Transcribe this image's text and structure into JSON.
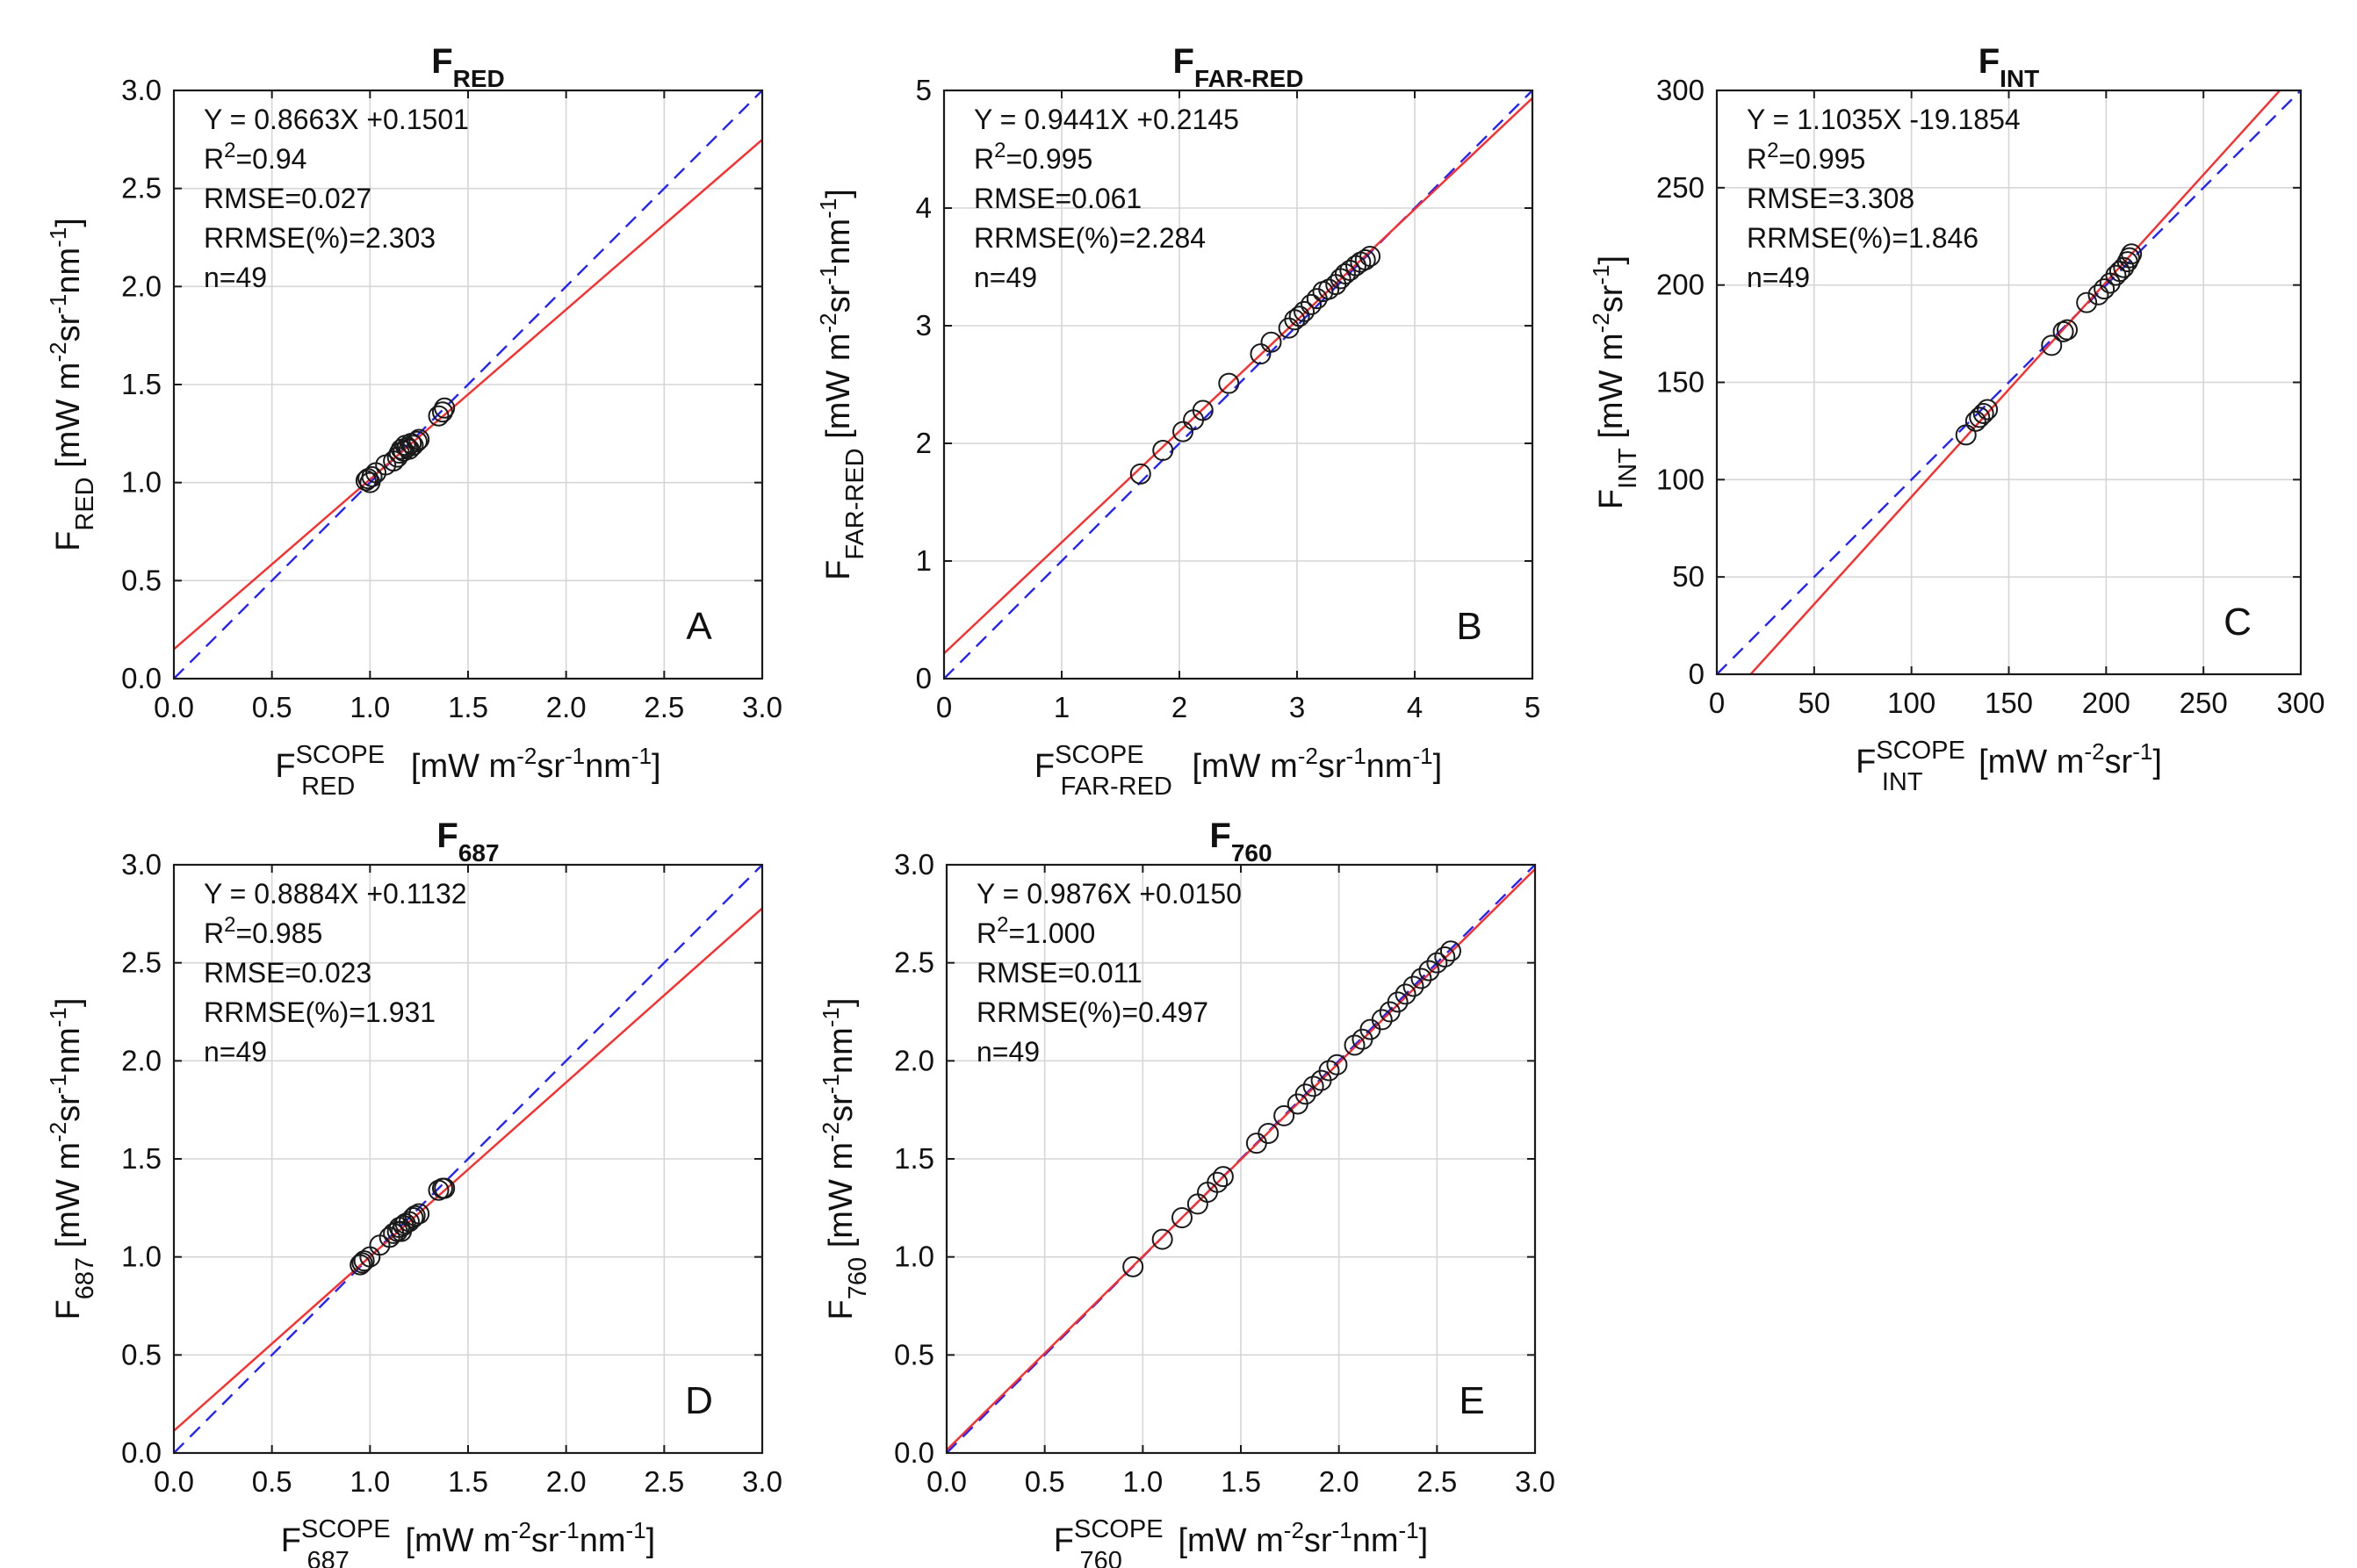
{
  "figure_name": "SCOPE comparison scatter panels",
  "colors": {
    "fit_line": "#ff2a2a",
    "one_to_one": "#2424ff",
    "marker": "#1a1a1a"
  },
  "chart_data": [
    {
      "id": "A",
      "type": "scatter",
      "letter": "A",
      "title": {
        "main": "F",
        "sub": "RED"
      },
      "xlabel": {
        "main": "F",
        "sup": "SCOPE",
        "sub": "RED",
        "unit": "[mW m-2sr-1nm-1]",
        "unit_parts": [
          "[mW m",
          "-2",
          "sr",
          "-1",
          "nm",
          "-1",
          "]"
        ]
      },
      "ylabel": {
        "main": "F",
        "sub": "RED",
        "unit": "[mW m-2sr-1nm-1]",
        "unit_parts": [
          "[mW m",
          "-2",
          "sr",
          "-1",
          "nm",
          "-1",
          "]"
        ]
      },
      "xlim": [
        0,
        3
      ],
      "ylim": [
        0,
        3
      ],
      "xticks": [
        "0.0",
        "0.5",
        "1.0",
        "1.5",
        "2.0",
        "2.5",
        "3.0"
      ],
      "yticks": [
        "0.0",
        "0.5",
        "1.0",
        "1.5",
        "2.0",
        "2.5",
        "3.0"
      ],
      "tick_values": [
        0,
        0.5,
        1,
        1.5,
        2,
        2.5,
        3
      ],
      "fit": {
        "slope": 0.8663,
        "intercept": 0.1501
      },
      "stats": {
        "equation": "Y = 0.8663X +0.1501",
        "r2_label": "R",
        "r2_sup": "2",
        "r2_value": "=0.94",
        "rmse": "RMSE=0.027",
        "rrmse": "RRMSE(%)=2.303",
        "n": "n=49"
      },
      "x": [
        0.98,
        0.99,
        1.0,
        1.01,
        1.03,
        1.08,
        1.12,
        1.14,
        1.15,
        1.16,
        1.17,
        1.18,
        1.19,
        1.2,
        1.21,
        1.22,
        1.24,
        1.25,
        1.35,
        1.37,
        1.38
      ],
      "y": [
        1.01,
        1.02,
        1.0,
        1.03,
        1.05,
        1.09,
        1.11,
        1.13,
        1.15,
        1.17,
        1.16,
        1.19,
        1.18,
        1.17,
        1.2,
        1.19,
        1.21,
        1.22,
        1.34,
        1.36,
        1.38
      ]
    },
    {
      "id": "B",
      "type": "scatter",
      "letter": "B",
      "title": {
        "main": "F",
        "sub": "FAR-RED"
      },
      "xlabel": {
        "main": "F",
        "sup": "SCOPE",
        "sub": "FAR-RED",
        "unit": "[mW m-2sr-1nm-1]",
        "unit_parts": [
          "[mW m",
          "-2",
          "sr",
          "-1",
          "nm",
          "-1",
          "]"
        ]
      },
      "ylabel": {
        "main": "F",
        "sub": "FAR-RED",
        "unit": "[mW m-2sr-1nm-1]",
        "unit_parts": [
          "[mW m",
          "-2",
          "sr",
          "-1",
          "nm",
          "-1",
          "]"
        ]
      },
      "xlim": [
        0,
        5
      ],
      "ylim": [
        0,
        5
      ],
      "xticks": [
        "0",
        "1",
        "2",
        "3",
        "4",
        "5"
      ],
      "yticks": [
        "0",
        "1",
        "2",
        "3",
        "4",
        "5"
      ],
      "tick_values": [
        0,
        1,
        2,
        3,
        4,
        5
      ],
      "fit": {
        "slope": 0.9441,
        "intercept": 0.2145
      },
      "stats": {
        "equation": "Y = 0.9441X +0.2145",
        "r2_label": "R",
        "r2_sup": "2",
        "r2_value": "=0.995",
        "rmse": "RMSE=0.061",
        "rrmse": "RRMSE(%)=2.284",
        "n": "n=49"
      },
      "x": [
        1.67,
        1.86,
        2.03,
        2.12,
        2.2,
        2.42,
        2.69,
        2.78,
        2.93,
        2.98,
        3.02,
        3.06,
        3.12,
        3.17,
        3.22,
        3.27,
        3.33,
        3.37,
        3.41,
        3.45,
        3.5,
        3.54,
        3.58,
        3.62
      ],
      "y": [
        1.74,
        1.94,
        2.1,
        2.2,
        2.28,
        2.51,
        2.76,
        2.86,
        2.98,
        3.05,
        3.08,
        3.12,
        3.18,
        3.23,
        3.29,
        3.31,
        3.35,
        3.4,
        3.44,
        3.47,
        3.51,
        3.54,
        3.56,
        3.59
      ]
    },
    {
      "id": "C",
      "type": "scatter",
      "letter": "C",
      "title": {
        "main": "F",
        "sub": "INT"
      },
      "xlabel": {
        "main": "F",
        "sup": "SCOPE",
        "sub": "INT",
        "unit": "[mW m-2sr-1]",
        "unit_parts": [
          "[mW m",
          "-2",
          "sr",
          "-1",
          "",
          "",
          "]"
        ]
      },
      "ylabel": {
        "main": "F",
        "sub": "INT",
        "unit": "[mW m-2sr-1]",
        "unit_parts": [
          "[mW m",
          "-2",
          "sr",
          "-1",
          "",
          "",
          "]"
        ]
      },
      "xlim": [
        0,
        300
      ],
      "ylim": [
        0,
        300
      ],
      "xticks": [
        "0",
        "50",
        "100",
        "150",
        "200",
        "250",
        "300"
      ],
      "yticks": [
        "0",
        "50",
        "100",
        "150",
        "200",
        "250",
        "300"
      ],
      "tick_values": [
        0,
        50,
        100,
        150,
        200,
        250,
        300
      ],
      "fit": {
        "slope": 1.1035,
        "intercept": -19.1854
      },
      "stats": {
        "equation": "Y = 1.1035X -19.1854",
        "r2_label": "R",
        "r2_sup": "2",
        "r2_value": "=0.995",
        "rmse": "RMSE=3.308",
        "rrmse": "RRMSE(%)=1.846",
        "n": "n=49"
      },
      "x": [
        128,
        133,
        135,
        137,
        139,
        172,
        178,
        180,
        190,
        196,
        199,
        202,
        205,
        207,
        209,
        211,
        212,
        213
      ],
      "y": [
        123,
        130,
        132,
        134,
        136,
        169,
        176,
        177,
        191,
        195,
        198,
        201,
        205,
        207,
        209,
        212,
        214,
        216
      ]
    },
    {
      "id": "D",
      "type": "scatter",
      "letter": "D",
      "title": {
        "main": "F",
        "sub": "687"
      },
      "xlabel": {
        "main": "F",
        "sup": "SCOPE",
        "sub": "687",
        "unit": "[mW m-2sr-1nm-1]",
        "unit_parts": [
          "[mW m",
          "-2",
          "sr",
          "-1",
          "nm",
          "-1",
          "]"
        ]
      },
      "ylabel": {
        "main": "F",
        "sub": "687",
        "unit": "[mW m-2sr-1nm-1]",
        "unit_parts": [
          "[mW m",
          "-2",
          "sr",
          "-1",
          "nm",
          "-1",
          "]"
        ]
      },
      "xlim": [
        0,
        3
      ],
      "ylim": [
        0,
        3
      ],
      "xticks": [
        "0.0",
        "0.5",
        "1.0",
        "1.5",
        "2.0",
        "2.5",
        "3.0"
      ],
      "yticks": [
        "0.0",
        "0.5",
        "1.0",
        "1.5",
        "2.0",
        "2.5",
        "3.0"
      ],
      "tick_values": [
        0,
        0.5,
        1,
        1.5,
        2,
        2.5,
        3
      ],
      "fit": {
        "slope": 0.8884,
        "intercept": 0.1132
      },
      "stats": {
        "equation": "Y = 0.8884X +0.1132",
        "r2_label": "R",
        "r2_sup": "2",
        "r2_value": "=0.985",
        "rmse": "RMSE=0.023",
        "rrmse": "RRMSE(%)=1.931",
        "n": "n=49"
      },
      "x": [
        0.95,
        0.96,
        0.97,
        1.0,
        1.05,
        1.1,
        1.12,
        1.14,
        1.15,
        1.16,
        1.17,
        1.18,
        1.2,
        1.22,
        1.23,
        1.25,
        1.35,
        1.37,
        1.38
      ],
      "y": [
        0.96,
        0.97,
        0.98,
        1.0,
        1.06,
        1.1,
        1.12,
        1.13,
        1.15,
        1.13,
        1.16,
        1.17,
        1.18,
        1.2,
        1.21,
        1.22,
        1.34,
        1.35,
        1.35
      ]
    },
    {
      "id": "E",
      "type": "scatter",
      "letter": "E",
      "title": {
        "main": "F",
        "sub": "760"
      },
      "xlabel": {
        "main": "F",
        "sup": "SCOPE",
        "sub": "760",
        "unit": "[mW m-2sr-1nm-1]",
        "unit_parts": [
          "[mW m",
          "-2",
          "sr",
          "-1",
          "nm",
          "-1",
          "]"
        ]
      },
      "ylabel": {
        "main": "F",
        "sub": "760",
        "unit": "[mW m-2sr-1nm-1]",
        "unit_parts": [
          "[mW m",
          "-2",
          "sr",
          "-1",
          "nm",
          "-1",
          "]"
        ]
      },
      "xlim": [
        0,
        3
      ],
      "ylim": [
        0,
        3
      ],
      "xticks": [
        "0.0",
        "0.5",
        "1.0",
        "1.5",
        "2.0",
        "2.5",
        "3.0"
      ],
      "yticks": [
        "0.0",
        "0.5",
        "1.0",
        "1.5",
        "2.0",
        "2.5",
        "3.0"
      ],
      "tick_values": [
        0,
        0.5,
        1,
        1.5,
        2,
        2.5,
        3
      ],
      "fit": {
        "slope": 0.9876,
        "intercept": 0.015
      },
      "stats": {
        "equation": "Y = 0.9876X +0.0150",
        "r2_label": "R",
        "r2_sup": "2",
        "r2_value": "=1.000",
        "rmse": "RMSE=0.011",
        "rrmse": "RRMSE(%)=0.497",
        "n": "n=49"
      },
      "x": [
        0.95,
        1.1,
        1.2,
        1.28,
        1.33,
        1.38,
        1.41,
        1.58,
        1.64,
        1.72,
        1.79,
        1.83,
        1.87,
        1.91,
        1.95,
        1.99,
        2.08,
        2.12,
        2.16,
        2.22,
        2.26,
        2.3,
        2.34,
        2.38,
        2.42,
        2.46,
        2.5,
        2.54,
        2.57
      ],
      "y": [
        0.95,
        1.09,
        1.2,
        1.27,
        1.33,
        1.38,
        1.41,
        1.58,
        1.63,
        1.72,
        1.78,
        1.83,
        1.87,
        1.9,
        1.95,
        1.98,
        2.08,
        2.11,
        2.16,
        2.21,
        2.25,
        2.3,
        2.34,
        2.38,
        2.42,
        2.46,
        2.5,
        2.53,
        2.56
      ]
    }
  ]
}
